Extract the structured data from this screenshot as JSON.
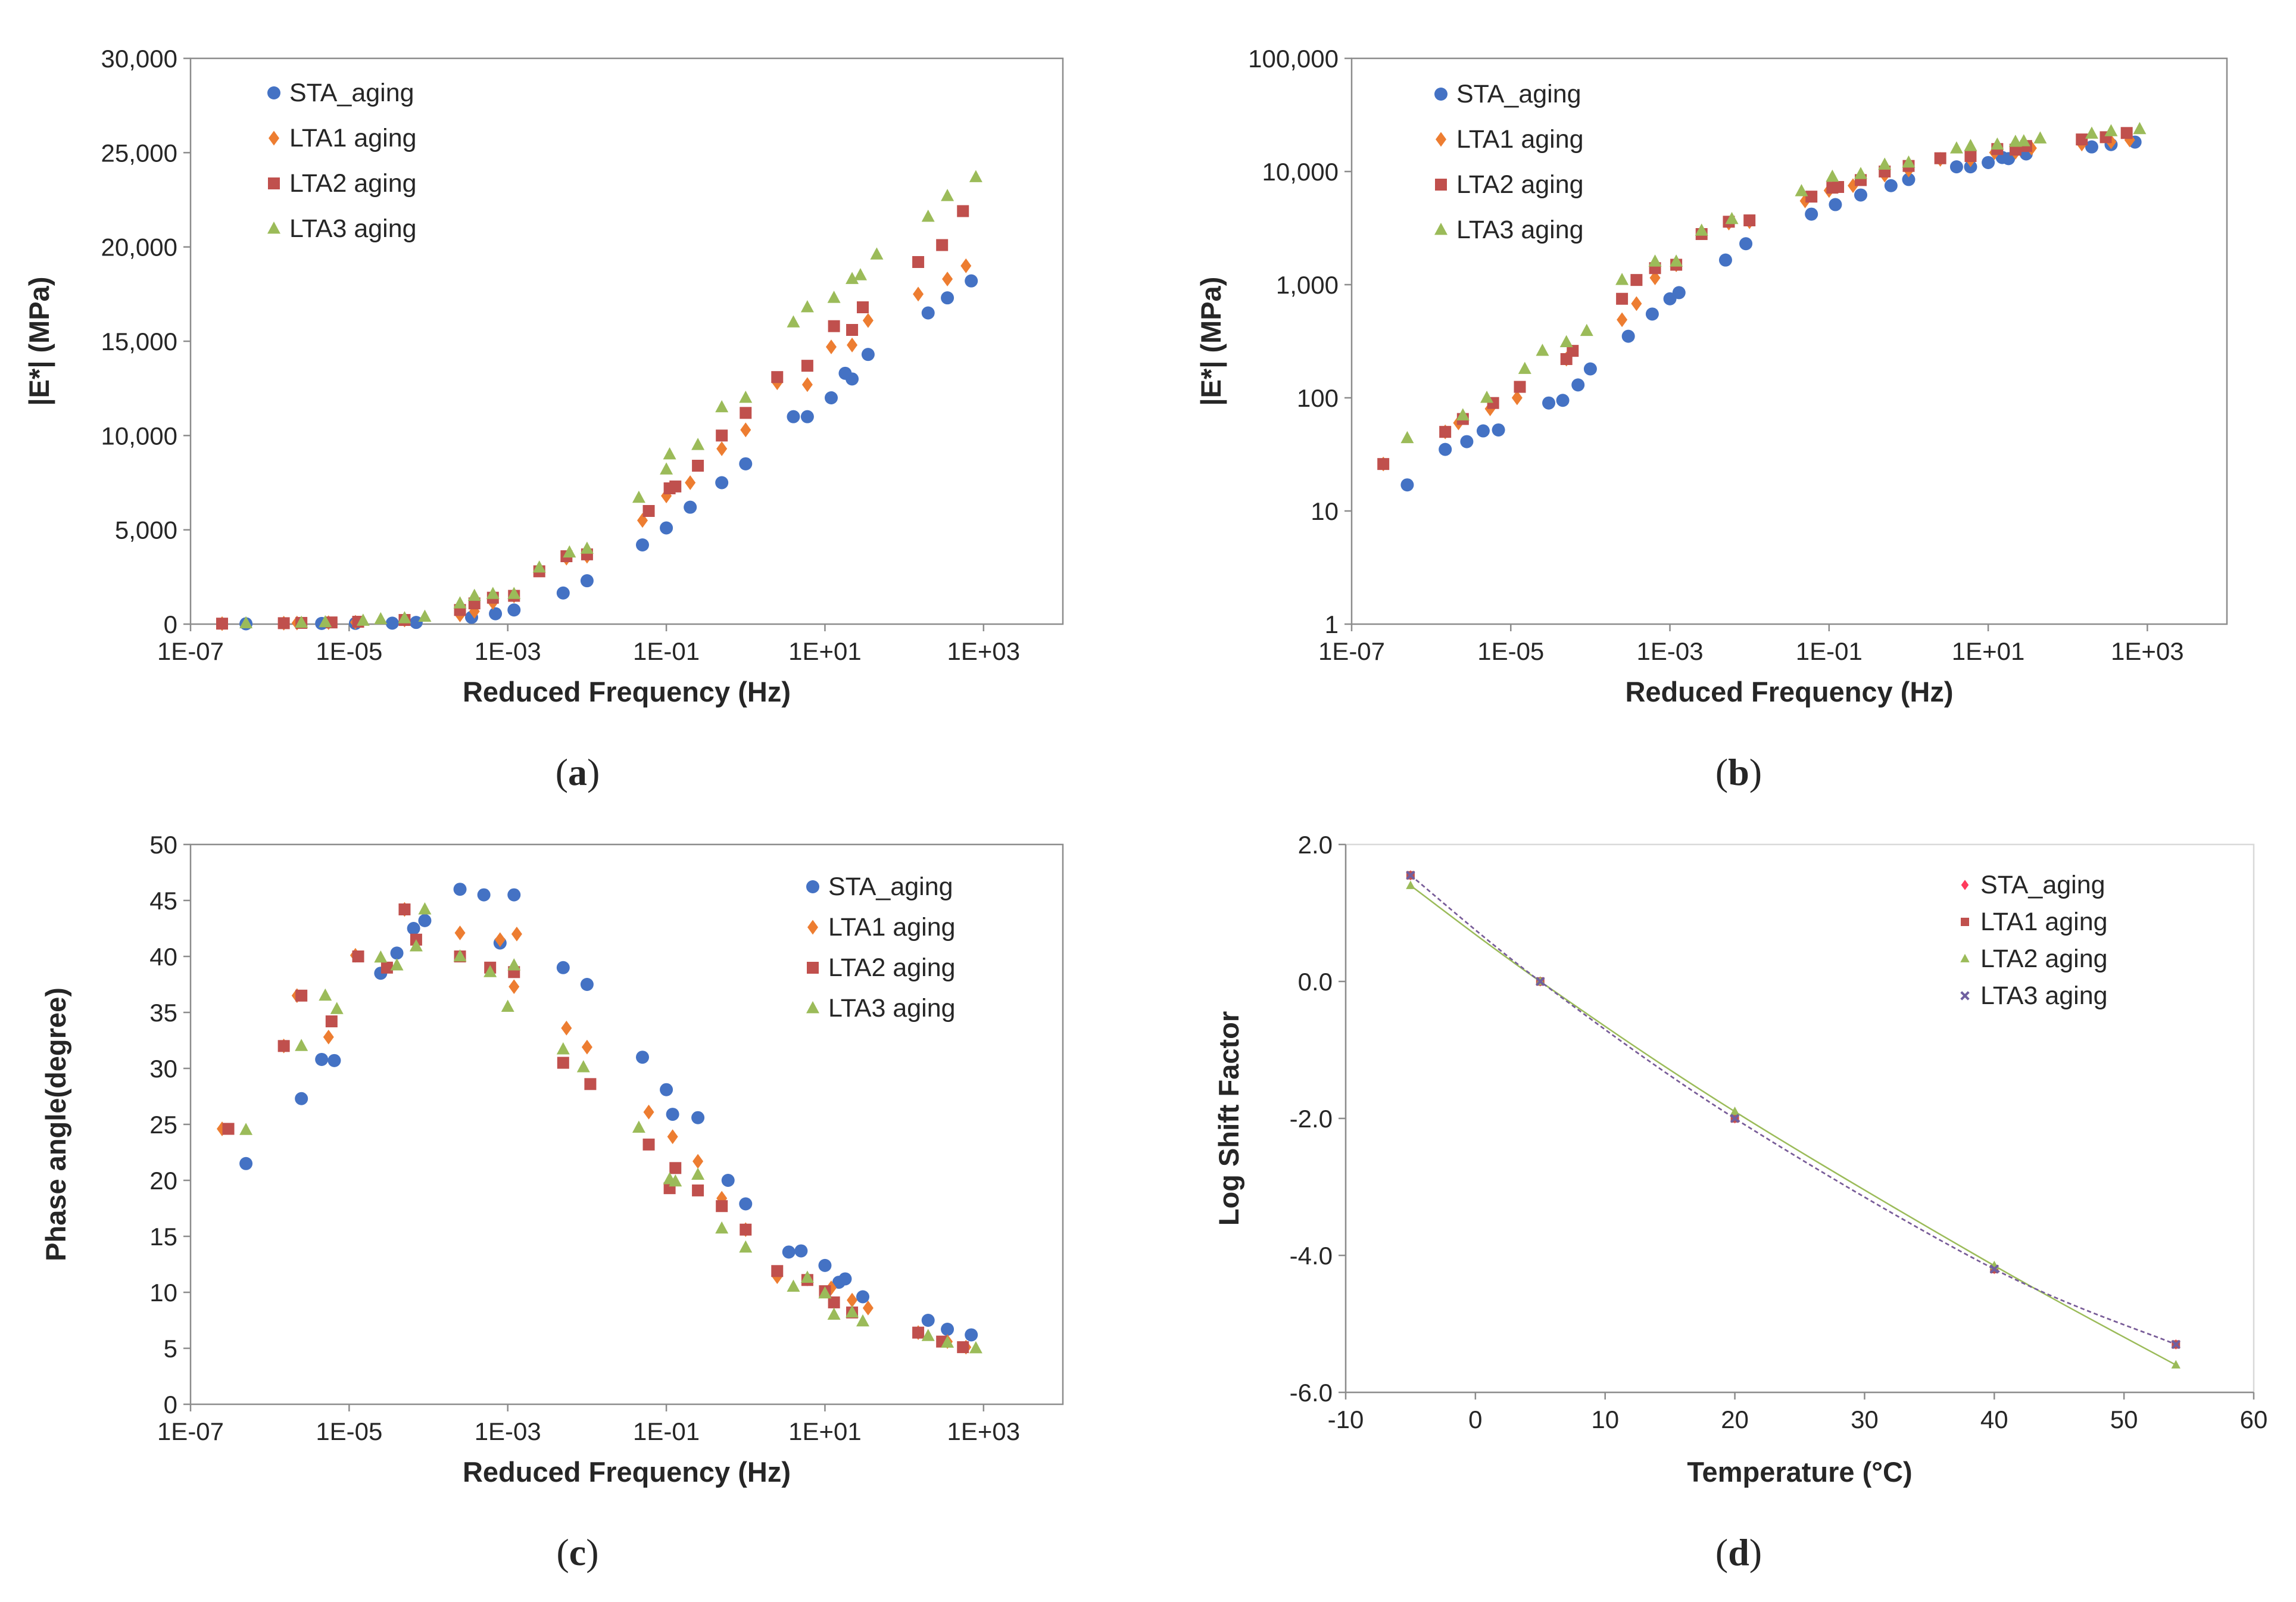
{
  "colors": {
    "STA": "#4472C4",
    "LTA1": "#ED7D31",
    "LTA2": "#C0504D",
    "LTA3": "#9BBB59",
    "d_STA": "#FF3B5C",
    "d_LTA1": "#C0504D",
    "d_LTA2": "#9BBB59",
    "d_LTA3": "#7060A0"
  },
  "panel_labels": [
    {
      "open": "(",
      "letter": "a",
      "close": ")"
    },
    {
      "open": "(",
      "letter": "b",
      "close": ")"
    },
    {
      "open": "(",
      "letter": "c",
      "close": ")"
    },
    {
      "open": "(",
      "letter": "d",
      "close": ")"
    }
  ],
  "chart_data": [
    {
      "type": "scatter",
      "xscale": "log",
      "xlabel": "Reduced Frequency (Hz)",
      "ylabel": "|E*| (MPa)",
      "xlim": [
        1e-07,
        10000
      ],
      "ylim": [
        0,
        30000
      ],
      "xticks": [
        "1E-07",
        "1E-05",
        "1E-03",
        "1E-01",
        "1E+01",
        "1E+03"
      ],
      "yticks": [
        "0",
        "5,000",
        "10,000",
        "15,000",
        "20,000",
        "25,000",
        "30,000"
      ],
      "grid": false,
      "legend_position": "top-left",
      "series": [
        {
          "name": "STA_aging",
          "marker": "circle",
          "x": [
            5e-07,
            4.5e-06,
            1.2e-05,
            3.5e-05,
            7e-05,
            0.00035,
            0.0007,
            0.0012,
            0.005,
            0.01,
            0.05,
            0.1,
            0.2,
            0.5,
            1,
            4,
            6,
            12,
            18,
            22,
            35,
            200,
            350,
            700
          ],
          "y": [
            17,
            35,
            41,
            51,
            90,
            360,
            550,
            750,
            1650,
            2300,
            4200,
            5100,
            6200,
            7500,
            8500,
            11000,
            11000,
            12000,
            13300,
            13000,
            14300,
            16500,
            17300,
            18200
          ]
        },
        {
          "name": "LTA1 aging",
          "marker": "diamond",
          "x": [
            2.5e-07,
            1.5e-06,
            2.2e-06,
            5.5e-06,
            1.2e-05,
            5e-05,
            0.00025,
            0.00038,
            0.00065,
            0.0012,
            0.0025,
            0.0055,
            0.01,
            0.05,
            0.1,
            0.2,
            0.5,
            1,
            2.5,
            6,
            12,
            22,
            35,
            150,
            350,
            600
          ],
          "y": [
            26,
            50,
            60,
            80,
            100,
            220,
            490,
            680,
            1150,
            1500,
            2900,
            3500,
            3600,
            5500,
            6800,
            7500,
            9300,
            10300,
            12800,
            12700,
            14700,
            14800,
            16100,
            17500,
            18300,
            19000
          ]
        },
        {
          "name": "LTA2 aging",
          "marker": "square",
          "x": [
            2.5e-07,
            1.5e-06,
            2.5e-06,
            6e-06,
            1.3e-05,
            5e-05,
            0.00025,
            0.00038,
            0.00065,
            0.0012,
            0.0025,
            0.0055,
            0.01,
            0.06,
            0.11,
            0.13,
            0.25,
            0.5,
            1,
            2.5,
            6,
            13,
            22,
            30,
            150,
            300,
            550
          ],
          "y": [
            26,
            50,
            65,
            90,
            125,
            220,
            750,
            1100,
            1400,
            1500,
            2800,
            3600,
            3700,
            6000,
            7200,
            7300,
            8400,
            10000,
            11200,
            13100,
            13700,
            15800,
            15600,
            16800,
            19200,
            20100,
            21900
          ]
        },
        {
          "name": "LTA3 aging",
          "marker": "triangle",
          "x": [
            5e-07,
            2.5e-06,
            5e-06,
            1.5e-05,
            2.5e-05,
            5e-05,
            9e-05,
            0.00025,
            0.00038,
            0.00065,
            0.0012,
            0.0025,
            0.006,
            0.01,
            0.045,
            0.1,
            0.11,
            0.25,
            0.5,
            1,
            4,
            6,
            13,
            22,
            28,
            45,
            200,
            350,
            800
          ],
          "y": [
            44,
            70,
            100,
            180,
            260,
            310,
            390,
            1100,
            1500,
            1600,
            1600,
            3000,
            3800,
            4000,
            6700,
            8200,
            9000,
            9500,
            11500,
            12000,
            16000,
            16800,
            17300,
            18300,
            18500,
            19600,
            21600,
            22700,
            23700
          ]
        }
      ]
    },
    {
      "type": "scatter",
      "xscale": "log",
      "yscale": "log",
      "xlabel": "Reduced Frequency (Hz)",
      "ylabel": "|E*| (MPa)",
      "xlim": [
        1e-07,
        10000
      ],
      "ylim": [
        1,
        100000
      ],
      "xticks": [
        "1E-07",
        "1E-05",
        "1E-03",
        "1E-01",
        "1E+01",
        "1E+03"
      ],
      "yticks": [
        "1",
        "10",
        "100",
        "1,000",
        "10,000",
        "100,000"
      ],
      "grid": false,
      "legend_position": "top-left",
      "series": [
        {
          "name": "STA_aging",
          "marker": "circle",
          "x": [
            5e-07,
            1.5e-06,
            2.8e-06,
            4.5e-06,
            7e-06,
            3e-05,
            4.5e-05,
            7e-05,
            0.0001,
            0.0003,
            0.0006,
            0.001,
            0.0013,
            0.005,
            0.009,
            0.06,
            0.12,
            0.25,
            0.6,
            1,
            4,
            6,
            10,
            15,
            18,
            30,
            200,
            350,
            700
          ],
          "y": [
            17,
            35,
            41,
            51,
            52,
            90,
            95,
            130,
            180,
            350,
            550,
            750,
            850,
            1650,
            2300,
            4200,
            5100,
            6200,
            7500,
            8500,
            11000,
            11000,
            12000,
            13300,
            13000,
            14300,
            16500,
            17300,
            18200
          ]
        },
        {
          "name": "LTA1 aging",
          "marker": "diamond",
          "x": [
            2.5e-07,
            1.5e-06,
            2.2e-06,
            5.5e-06,
            1.2e-05,
            5e-05,
            0.00025,
            0.00038,
            0.00065,
            0.0012,
            0.0025,
            0.0055,
            0.01,
            0.05,
            0.1,
            0.2,
            0.5,
            1,
            2.5,
            6,
            12,
            22,
            35,
            150,
            350,
            600
          ],
          "y": [
            26,
            50,
            60,
            80,
            100,
            220,
            490,
            680,
            1150,
            1500,
            2900,
            3500,
            3600,
            5500,
            6800,
            7500,
            9300,
            10300,
            12800,
            12700,
            14700,
            14800,
            16100,
            17500,
            18300,
            19000
          ]
        },
        {
          "name": "LTA2 aging",
          "marker": "square",
          "x": [
            2.5e-07,
            1.5e-06,
            2.5e-06,
            6e-06,
            1.3e-05,
            5e-05,
            6e-05,
            0.00025,
            0.00038,
            0.00065,
            0.0012,
            0.0025,
            0.0055,
            0.01,
            0.06,
            0.11,
            0.13,
            0.25,
            0.5,
            1,
            2.5,
            6,
            13,
            22,
            30,
            150,
            300,
            550
          ],
          "y": [
            26,
            50,
            65,
            90,
            125,
            220,
            260,
            750,
            1100,
            1400,
            1500,
            2800,
            3600,
            3700,
            6000,
            7200,
            7300,
            8400,
            10000,
            11200,
            13100,
            13700,
            15800,
            15600,
            16800,
            19200,
            20100,
            21900
          ]
        },
        {
          "name": "LTA3 aging",
          "marker": "triangle",
          "x": [
            5e-07,
            2.5e-06,
            5e-06,
            1.5e-05,
            2.5e-05,
            5e-05,
            9e-05,
            0.00025,
            0.00065,
            0.0012,
            0.0025,
            0.006,
            0.045,
            0.11,
            0.25,
            0.5,
            1,
            4,
            6,
            13,
            22,
            28,
            45,
            200,
            350,
            800
          ],
          "y": [
            44,
            70,
            100,
            180,
            260,
            310,
            390,
            1100,
            1600,
            1600,
            3000,
            3800,
            6700,
            9000,
            9500,
            11500,
            12000,
            16000,
            16800,
            17300,
            18300,
            18500,
            19600,
            21600,
            22700,
            23700
          ]
        }
      ]
    },
    {
      "type": "scatter",
      "xscale": "log",
      "xlabel": "Reduced Frequency (Hz)",
      "ylabel": "Phase angle(degree)",
      "xlim": [
        1e-07,
        10000
      ],
      "ylim": [
        0,
        50
      ],
      "xticks": [
        "1E-07",
        "1E-05",
        "1E-03",
        "1E-01",
        "1E+01",
        "1E+03"
      ],
      "yticks": [
        "0",
        "5",
        "10",
        "15",
        "20",
        "25",
        "30",
        "35",
        "40",
        "45",
        "50"
      ],
      "grid": false,
      "legend_position": "top-right",
      "series": [
        {
          "name": "STA_aging",
          "marker": "circle",
          "x": [
            5e-07,
            2.5e-06,
            4.5e-06,
            6.5e-06,
            2.5e-05,
            4e-05,
            6.5e-05,
            9e-05,
            0.00025,
            0.0005,
            0.0008,
            0.0012,
            0.005,
            0.01,
            0.05,
            0.1,
            0.12,
            0.25,
            0.6,
            1,
            3.5,
            5,
            10,
            15,
            18,
            30,
            200,
            350,
            700
          ],
          "y": [
            21.5,
            27.3,
            30.8,
            30.7,
            38.5,
            40.3,
            42.5,
            43.2,
            46.0,
            45.5,
            41.2,
            45.5,
            39.0,
            37.5,
            31.0,
            28.1,
            25.9,
            25.6,
            20.0,
            17.9,
            13.6,
            13.7,
            12.4,
            10.9,
            11.2,
            9.6,
            7.5,
            6.7,
            6.2
          ]
        },
        {
          "name": "LTA1 aging",
          "marker": "diamond",
          "x": [
            2.5e-07,
            1.5e-06,
            2.2e-06,
            5.5e-06,
            1.2e-05,
            5e-05,
            0.00025,
            0.0008,
            0.0012,
            0.0013,
            0.0055,
            0.01,
            0.06,
            0.12,
            0.25,
            0.5,
            1,
            2.5,
            6,
            12,
            22,
            35,
            150,
            350,
            600
          ],
          "y": [
            24.6,
            32.0,
            36.5,
            32.8,
            40.1,
            44.2,
            42.1,
            41.5,
            37.3,
            42.0,
            33.6,
            31.9,
            26.1,
            23.9,
            21.7,
            18.4,
            15.6,
            11.4,
            11.2,
            10.4,
            9.3,
            8.6,
            6.4,
            5.6,
            5.1
          ]
        },
        {
          "name": "LTA2 aging",
          "marker": "square",
          "x": [
            3e-07,
            1.5e-06,
            2.5e-06,
            6e-06,
            1.3e-05,
            3e-05,
            5e-05,
            7e-05,
            0.00025,
            0.0006,
            0.0012,
            0.005,
            0.011,
            0.06,
            0.11,
            0.13,
            0.25,
            0.5,
            1,
            2.5,
            6,
            10,
            13,
            22,
            150,
            300,
            550
          ],
          "y": [
            24.6,
            32.0,
            36.5,
            34.2,
            40.0,
            39.0,
            44.2,
            41.5,
            40.0,
            39.0,
            38.6,
            30.5,
            28.6,
            23.2,
            19.3,
            21.1,
            19.1,
            17.7,
            15.6,
            11.9,
            11.1,
            10.1,
            9.1,
            8.2,
            6.4,
            5.6,
            5.1
          ]
        },
        {
          "name": "LTA3 aging",
          "marker": "triangle",
          "x": [
            5e-07,
            2.5e-06,
            5e-06,
            7e-06,
            2.5e-05,
            4e-05,
            7e-05,
            9e-05,
            0.00025,
            0.0006,
            0.001,
            0.0012,
            0.005,
            0.009,
            0.045,
            0.11,
            0.13,
            0.25,
            0.5,
            1,
            4,
            6,
            10,
            13,
            22,
            30,
            200,
            350,
            800
          ],
          "y": [
            24.5,
            32.0,
            36.5,
            35.3,
            39.9,
            39.2,
            40.9,
            44.2,
            40.0,
            38.6,
            35.5,
            39.2,
            31.7,
            30.1,
            24.7,
            20.1,
            19.9,
            20.5,
            15.7,
            14.0,
            10.5,
            11.3,
            9.9,
            8.0,
            8.2,
            7.4,
            6.1,
            5.5,
            5.0
          ]
        }
      ]
    },
    {
      "type": "line",
      "xlabel": "Temperature (°C)",
      "ylabel": "Log Shift Factor",
      "xlim": [
        -10,
        60
      ],
      "ylim": [
        -6,
        2
      ],
      "xticks": [
        "-10",
        "0",
        "10",
        "20",
        "30",
        "40",
        "50",
        "60"
      ],
      "yticks": [
        "-6.0",
        "-4.0",
        "-2.0",
        "0.0",
        "2.0"
      ],
      "grid": false,
      "legend_position": "top-right",
      "series": [
        {
          "name": "STA_aging",
          "marker": "diamond",
          "x": [
            -5,
            5,
            20,
            40,
            54
          ],
          "y": [
            1.55,
            0,
            -2.0,
            -4.2,
            -5.3
          ]
        },
        {
          "name": "LTA1 aging",
          "marker": "square",
          "x": [
            -5,
            5,
            20,
            40,
            54
          ],
          "y": [
            1.55,
            0,
            -2.0,
            -4.2,
            -5.3
          ]
        },
        {
          "name": "LTA2 aging",
          "marker": "triangle",
          "x": [
            -5,
            5,
            20,
            40,
            54
          ],
          "y": [
            1.4,
            0,
            -1.9,
            -4.15,
            -5.6
          ]
        },
        {
          "name": "LTA3 aging",
          "marker": "x",
          "x": [
            -5,
            5,
            20,
            40,
            54
          ],
          "y": [
            1.55,
            0,
            -2.0,
            -4.2,
            -5.3
          ]
        }
      ]
    }
  ]
}
